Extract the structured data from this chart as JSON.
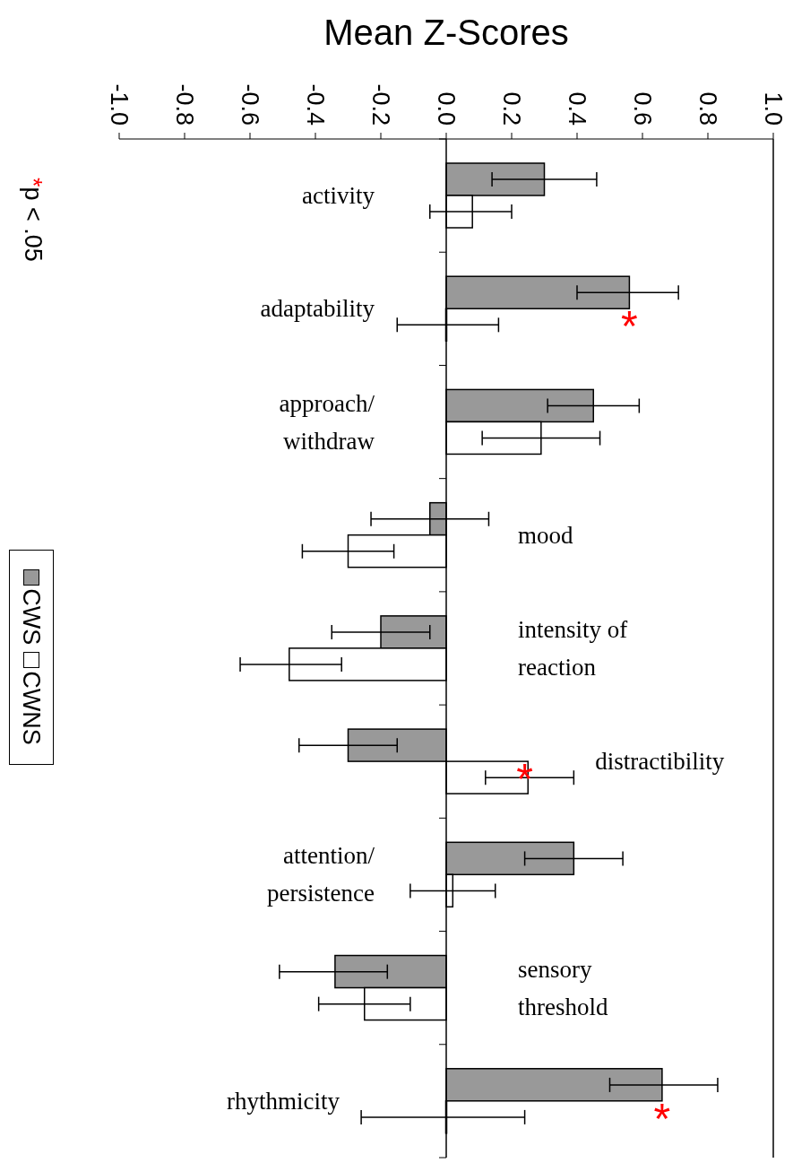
{
  "chart_data": {
    "type": "bar",
    "orientation": "horizontal",
    "xlabel": "Mean Z-Scores",
    "categories": [
      "activity",
      "adaptability",
      "approach/ withdraw",
      "mood",
      "intensity of reaction",
      "distractibility",
      "attention/ persistence",
      "sensory threshold",
      "rhythmicity"
    ],
    "series": [
      {
        "name": "CWS",
        "color": "#999999",
        "values": [
          0.3,
          0.56,
          0.45,
          -0.05,
          -0.2,
          -0.3,
          0.39,
          -0.34,
          0.66
        ],
        "errors": [
          [
            0.14,
            0.46
          ],
          [
            0.4,
            0.71
          ],
          [
            0.31,
            0.59
          ],
          [
            -0.23,
            0.13
          ],
          [
            -0.35,
            -0.05
          ],
          [
            -0.45,
            -0.15
          ],
          [
            0.24,
            0.54
          ],
          [
            -0.51,
            -0.18
          ],
          [
            0.5,
            0.83
          ]
        ]
      },
      {
        "name": "CWNS",
        "color": "#ffffff",
        "values": [
          0.08,
          0.0,
          0.29,
          -0.3,
          -0.48,
          0.25,
          0.02,
          -0.25,
          0.0
        ],
        "errors": [
          [
            -0.05,
            0.2
          ],
          [
            -0.15,
            0.16
          ],
          [
            0.11,
            0.47
          ],
          [
            -0.44,
            -0.16
          ],
          [
            -0.63,
            -0.32
          ],
          [
            0.12,
            0.39
          ],
          [
            -0.11,
            0.15
          ],
          [
            -0.39,
            -0.11
          ],
          [
            -0.26,
            0.24
          ]
        ]
      }
    ],
    "xlim": [
      -1.0,
      1.0
    ],
    "xticks": [
      {
        "value": -1,
        "label": "-1.0"
      },
      -0.8,
      -0.6,
      -0.4,
      -0.2,
      {
        "value": 0,
        "label": "0.0"
      },
      0.2,
      0.4,
      0.6,
      0.8,
      {
        "value": 1,
        "label": "1.0"
      }
    ],
    "annotations": [
      {
        "text": "*",
        "x": 0.56,
        "y": "adaptability"
      },
      {
        "text": "*",
        "x": 0.24,
        "y": "distractibility"
      },
      {
        "text": "*",
        "x": 0.66,
        "y": "rhythmicity"
      },
      "*p < .05"
    ],
    "legend": "left"
  }
}
